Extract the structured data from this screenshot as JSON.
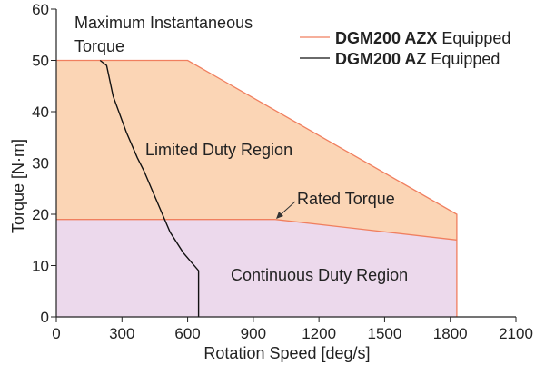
{
  "chart_data": {
    "type": "area",
    "xlabel": "Rotation Speed [deg/s]",
    "ylabel": "Torque [N·m]",
    "xlim": [
      0,
      2100
    ],
    "ylim": [
      0,
      60
    ],
    "x_ticks": [
      0,
      300,
      600,
      900,
      1200,
      1500,
      1800,
      2100
    ],
    "y_ticks": [
      0,
      10,
      20,
      30,
      40,
      50,
      60
    ],
    "grid": false,
    "legend_position": "top-right",
    "colors": {
      "limited_fill": "#fbd5b5",
      "continuous_fill": "#ecd9ec",
      "azx_line": "#f07f5f",
      "az_line": "#111111",
      "axis": "#222222"
    },
    "legend": [
      {
        "bold": "DGM200 AZX",
        "text": " Equipped",
        "color": "#f07f5f"
      },
      {
        "bold": "DGM200 AZ",
        "text": " Equipped",
        "color": "#111111"
      }
    ],
    "regions": {
      "limited": {
        "label": "Limited Duty Region"
      },
      "continuous": {
        "label": "Continuous Duty Region"
      }
    },
    "annotations": {
      "max_torque_line1": "Maximum Instantaneous",
      "max_torque_line2": "Torque",
      "rated_torque": "Rated Torque"
    },
    "series": [
      {
        "name": "DGM200 AZX Equipped",
        "role": "maximum instantaneous torque",
        "x": [
          0,
          600,
          1830,
          1830
        ],
        "y": [
          50,
          50,
          20,
          0
        ]
      },
      {
        "name": "DGM200 AZX Equipped",
        "role": "rated torque",
        "x": [
          0,
          1000,
          1830
        ],
        "y": [
          19,
          19,
          15
        ]
      },
      {
        "name": "DGM200 AZ Equipped",
        "role": "maximum instantaneous torque",
        "x": [
          200,
          230,
          260,
          320,
          370,
          400,
          440,
          470,
          520,
          580,
          650,
          650
        ],
        "y": [
          50,
          49,
          43,
          36,
          31,
          28.5,
          24.5,
          21.5,
          16.5,
          12.5,
          9,
          0
        ]
      }
    ]
  }
}
